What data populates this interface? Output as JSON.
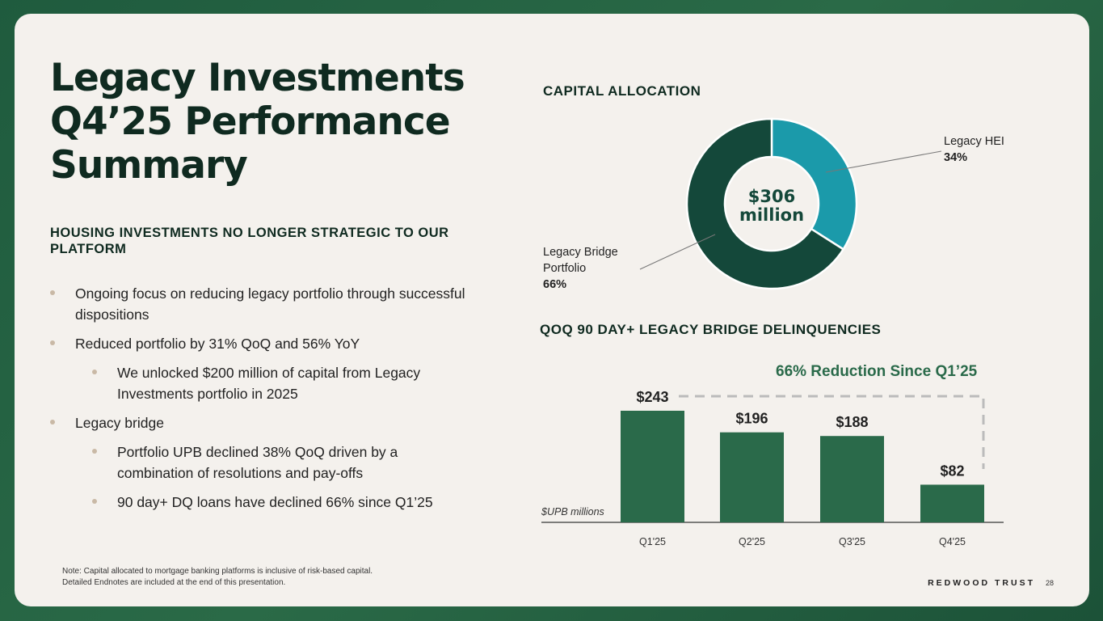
{
  "title": "Legacy Investments Q4’25 Performance Summary",
  "title_lines": [
    "Legacy Investments",
    "Q4’25 Performance",
    "Summary"
  ],
  "subheading": "HOUSING INVESTMENTS NO LONGER STRATEGIC TO OUR PLATFORM",
  "bullets": [
    {
      "level": 1,
      "text": "Ongoing focus on reducing legacy portfolio through successful dispositions"
    },
    {
      "level": 1,
      "text": "Reduced portfolio by 31% QoQ and 56% YoY"
    },
    {
      "level": 2,
      "text": "We unlocked $200 million of capital from Legacy Investments  portfolio in 2025"
    },
    {
      "level": 1,
      "text": "Legacy bridge"
    },
    {
      "level": 2,
      "text": "Portfolio UPB declined 38% QoQ driven by a combination of resolutions and pay-offs"
    },
    {
      "level": 2,
      "text": "90 day+ DQ loans have declined 66% since Q1’25"
    }
  ],
  "footer": {
    "note_line1": "Note: Capital allocated to mortgage banking platforms is inclusive of risk-based capital.",
    "note_line2": "Detailed Endnotes are included at the end of this presentation.",
    "brand": "REDWOOD TRUST",
    "page": "28"
  },
  "colors": {
    "bar": "#2a6a4a",
    "hei": "#1b9aaa",
    "bridge": "#14483a",
    "title": "#0f2a20"
  },
  "chart_data": [
    {
      "type": "pie",
      "title": "CAPITAL ALLOCATION",
      "center_label": [
        "$306",
        "million"
      ],
      "slices": [
        {
          "name": "Legacy HEI",
          "value": 34,
          "label": "34%",
          "color": "#1b9aaa"
        },
        {
          "name": "Legacy Bridge Portfolio",
          "name_lines": [
            "Legacy Bridge",
            "Portfolio"
          ],
          "value": 66,
          "label": "66%",
          "color": "#14483a"
        }
      ]
    },
    {
      "type": "bar",
      "title": "QOQ 90 DAY+ LEGACY BRIDGE DELINQUENCIES",
      "ylabel": "$UPB millions",
      "categories": [
        "Q1'25",
        "Q2'25",
        "Q3'25",
        "Q4'25"
      ],
      "values": [
        243,
        196,
        188,
        82
      ],
      "data_labels": [
        "$243",
        "$196",
        "$188",
        "$82"
      ],
      "annotation": "66% Reduction Since Q1’25"
    }
  ]
}
